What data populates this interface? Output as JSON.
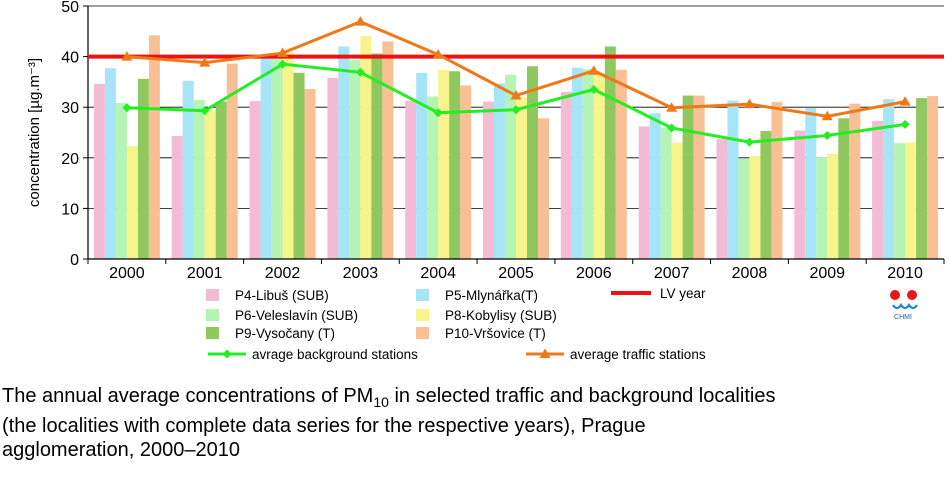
{
  "chart_data": {
    "type": "bar",
    "ylabel": "concentration [µg.m⁻³]",
    "ylim": [
      0,
      50
    ],
    "yticks": [
      0,
      10,
      20,
      30,
      40,
      50
    ],
    "grid": "horizontal",
    "legend": "bottom",
    "categories": [
      "2000",
      "2001",
      "2002",
      "2003",
      "2004",
      "2005",
      "2006",
      "2007",
      "2008",
      "2009",
      "2010"
    ],
    "series": [
      {
        "name": "P4-Libuš (SUB)",
        "color": "#f4bcd4",
        "values": [
          34.6,
          24.3,
          31.2,
          35.8,
          31.3,
          31.1,
          33.0,
          26.2,
          23.7,
          25.4,
          27.3
        ]
      },
      {
        "name": "P5-Mlynářka(T)",
        "color": "#a6e4f8",
        "values": [
          37.7,
          35.2,
          40.0,
          42.0,
          36.8,
          34.7,
          37.8,
          28.8,
          31.3,
          29.9,
          31.6
        ]
      },
      {
        "name": "P6-Veleslavín (SUB)",
        "color": "#b4f4b4",
        "values": [
          30.8,
          31.4,
          40.3,
          39.4,
          32.1,
          36.4,
          37.5,
          26.0,
          19.8,
          20.1,
          22.9
        ]
      },
      {
        "name": "P8-Kobylisy (SUB)",
        "color": "#f8f48c",
        "values": [
          22.3,
          29.3,
          40.9,
          44.1,
          37.4,
          32.0,
          36.7,
          23.0,
          20.4,
          20.8,
          23.0
        ]
      },
      {
        "name": "P9-Vysočany (T)",
        "color": "#90c860",
        "values": [
          35.6,
          31.1,
          36.8,
          40.6,
          37.1,
          38.1,
          42.0,
          32.3,
          25.3,
          27.8,
          31.8
        ]
      },
      {
        "name": "P10-Vršovice (T)",
        "color": "#f8c094",
        "values": [
          44.2,
          38.6,
          33.6,
          43.0,
          34.3,
          27.8,
          37.4,
          32.3,
          31.0,
          30.7,
          32.2
        ]
      }
    ],
    "lines": [
      {
        "name": "avrage background stations",
        "color": "#22ee22",
        "marker": "diamond",
        "values": [
          29.9,
          29.3,
          38.5,
          36.9,
          28.9,
          29.5,
          33.5,
          25.9,
          23.1,
          24.4,
          26.6
        ]
      },
      {
        "name": "average traffic stations",
        "color": "#f07818",
        "marker": "triangle",
        "values": [
          40.0,
          38.8,
          40.7,
          46.9,
          40.4,
          32.3,
          37.2,
          29.9,
          30.6,
          28.2,
          31.1
        ]
      }
    ],
    "reference_line": {
      "name": "LV year",
      "value": 40,
      "color": "#ee1111"
    }
  },
  "logo": {
    "text": "CHMI"
  },
  "caption": {
    "line1_pre": "The annual average concentrations of PM",
    "line1_sub": "10",
    "line1_post": " in selected traffic and background localities",
    "line2": "(the localities with complete data series for the respective years), Prague",
    "line3": "agglomeration, 2000–2010"
  }
}
